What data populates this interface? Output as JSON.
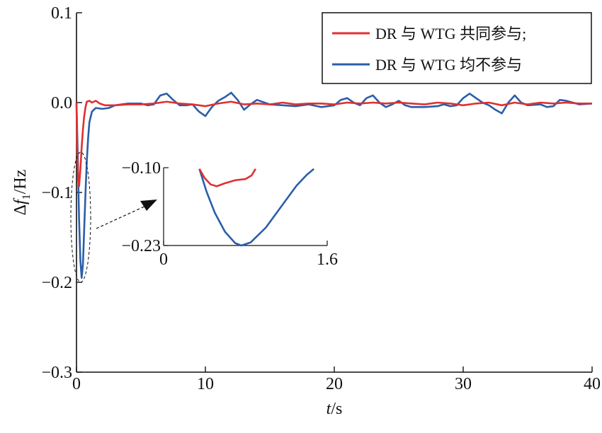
{
  "chart_data": {
    "type": "line",
    "xlabel": "t/s",
    "ylabel": "Δf1/Hz",
    "ylabel_main": "Δf",
    "ylabel_sub": "1",
    "ylabel_unit": "/Hz",
    "xlim": [
      0,
      40
    ],
    "ylim": [
      -0.3,
      0.1
    ],
    "x_ticks": [
      0,
      10,
      20,
      30,
      40
    ],
    "x_tick_labels": [
      "0",
      "10",
      "20",
      "30",
      "40"
    ],
    "y_ticks": [
      0.1,
      0.0,
      -0.1,
      -0.2,
      -0.3
    ],
    "y_tick_labels": [
      "0.1",
      "0.0",
      "−0.1",
      "−0.2",
      "−0.3"
    ],
    "grid": false,
    "legend_position": "top-right",
    "series": [
      {
        "name": "DR 与  WTG 共同参与;",
        "color": "#e03030",
        "points": [
          [
            0,
            0
          ],
          [
            0.06,
            -0.055
          ],
          [
            0.12,
            -0.085
          ],
          [
            0.2,
            -0.093
          ],
          [
            0.3,
            -0.075
          ],
          [
            0.4,
            -0.05
          ],
          [
            0.5,
            -0.03
          ],
          [
            0.6,
            -0.015
          ],
          [
            0.7,
            -0.005
          ],
          [
            0.8,
            0.001
          ],
          [
            1.0,
            0.002
          ],
          [
            1.2,
            0.0
          ],
          [
            1.5,
            0.002
          ],
          [
            1.8,
            -0.001
          ],
          [
            2.2,
            -0.003
          ],
          [
            3,
            -0.003
          ],
          [
            4,
            -0.002
          ],
          [
            5,
            -0.002
          ],
          [
            6,
            -0.001
          ],
          [
            7,
            0.001
          ],
          [
            8,
            -0.001
          ],
          [
            9,
            -0.002
          ],
          [
            10,
            -0.004
          ],
          [
            11,
            -0.001
          ],
          [
            12,
            0.001
          ],
          [
            13,
            -0.002
          ],
          [
            14,
            -0.001
          ],
          [
            15,
            -0.002
          ],
          [
            16,
            0.0
          ],
          [
            17,
            -0.002
          ],
          [
            18,
            -0.001
          ],
          [
            19,
            -0.001
          ],
          [
            20,
            -0.002
          ],
          [
            21,
            0.0
          ],
          [
            22,
            -0.001
          ],
          [
            23,
            0.0
          ],
          [
            24,
            -0.001
          ],
          [
            25,
            0.0
          ],
          [
            26,
            -0.001
          ],
          [
            27,
            -0.002
          ],
          [
            28,
            0.0
          ],
          [
            29,
            -0.001
          ],
          [
            30,
            -0.003
          ],
          [
            31,
            -0.001
          ],
          [
            32,
            0.0
          ],
          [
            33,
            -0.003
          ],
          [
            34,
            0.0
          ],
          [
            35,
            -0.002
          ],
          [
            36,
            0.0
          ],
          [
            37,
            -0.001
          ],
          [
            38,
            0.0
          ],
          [
            39,
            -0.001
          ],
          [
            40,
            -0.001
          ]
        ]
      },
      {
        "name": "DR 与  WTG 均不参与",
        "color": "#2a5ea8",
        "points": [
          [
            0,
            0
          ],
          [
            0.1,
            -0.06
          ],
          [
            0.2,
            -0.13
          ],
          [
            0.3,
            -0.175
          ],
          [
            0.4,
            -0.195
          ],
          [
            0.5,
            -0.18
          ],
          [
            0.6,
            -0.14
          ],
          [
            0.7,
            -0.1
          ],
          [
            0.8,
            -0.065
          ],
          [
            0.9,
            -0.04
          ],
          [
            1.0,
            -0.022
          ],
          [
            1.2,
            -0.01
          ],
          [
            1.5,
            -0.006
          ],
          [
            2.0,
            -0.007
          ],
          [
            2.5,
            -0.006
          ],
          [
            3.0,
            -0.003
          ],
          [
            3.5,
            -0.002
          ],
          [
            4,
            -0.001
          ],
          [
            5,
            -0.001
          ],
          [
            5.5,
            -0.003
          ],
          [
            6,
            -0.002
          ],
          [
            6.5,
            0.008
          ],
          [
            7,
            0.01
          ],
          [
            7.5,
            0.003
          ],
          [
            8,
            -0.003
          ],
          [
            8.5,
            -0.003
          ],
          [
            9,
            -0.002
          ],
          [
            9.5,
            -0.01
          ],
          [
            10,
            -0.015
          ],
          [
            10.5,
            -0.005
          ],
          [
            11,
            0.002
          ],
          [
            11.5,
            0.006
          ],
          [
            12,
            0.011
          ],
          [
            12.5,
            0.003
          ],
          [
            13,
            -0.008
          ],
          [
            13.5,
            -0.002
          ],
          [
            14,
            0.003
          ],
          [
            15,
            -0.002
          ],
          [
            16,
            -0.003
          ],
          [
            17,
            -0.004
          ],
          [
            18,
            -0.002
          ],
          [
            19,
            -0.005
          ],
          [
            20,
            -0.003
          ],
          [
            20.5,
            0.003
          ],
          [
            21,
            0.005
          ],
          [
            21.5,
            0.0
          ],
          [
            22,
            -0.003
          ],
          [
            22.5,
            0.005
          ],
          [
            23,
            0.008
          ],
          [
            23.5,
            0.0
          ],
          [
            24,
            -0.005
          ],
          [
            24.5,
            -0.002
          ],
          [
            25,
            0.002
          ],
          [
            25.5,
            -0.003
          ],
          [
            26,
            -0.005
          ],
          [
            27,
            -0.005
          ],
          [
            28,
            -0.004
          ],
          [
            28.5,
            -0.002
          ],
          [
            29,
            -0.004
          ],
          [
            29.5,
            -0.003
          ],
          [
            30,
            0.005
          ],
          [
            30.5,
            0.01
          ],
          [
            31,
            0.005
          ],
          [
            31.5,
            0.0
          ],
          [
            32,
            -0.003
          ],
          [
            32.5,
            -0.008
          ],
          [
            33,
            -0.012
          ],
          [
            33.5,
            0.0
          ],
          [
            34,
            0.008
          ],
          [
            34.5,
            0.0
          ],
          [
            35,
            -0.003
          ],
          [
            36,
            -0.002
          ],
          [
            36.5,
            -0.005
          ],
          [
            37,
            -0.004
          ],
          [
            37.5,
            0.003
          ],
          [
            38,
            0.002
          ],
          [
            39,
            -0.002
          ],
          [
            40,
            -0.001
          ]
        ]
      }
    ],
    "inset": {
      "xlim": [
        0,
        1.6
      ],
      "ylim": [
        -0.23,
        -0.1
      ],
      "x_tick_labels": [
        "0",
        "1.6"
      ],
      "y_tick_labels": [
        "−0.10",
        "−0.23"
      ],
      "series": [
        {
          "color": "#e03030",
          "points": [
            [
              0.35,
              -0.102
            ],
            [
              0.4,
              -0.117
            ],
            [
              0.46,
              -0.128
            ],
            [
              0.52,
              -0.131
            ],
            [
              0.6,
              -0.126
            ],
            [
              0.7,
              -0.121
            ],
            [
              0.8,
              -0.119
            ],
            [
              0.86,
              -0.113
            ],
            [
              0.9,
              -0.102
            ]
          ]
        },
        {
          "color": "#2a5ea8",
          "points": [
            [
              0.35,
              -0.102
            ],
            [
              0.42,
              -0.14
            ],
            [
              0.5,
              -0.175
            ],
            [
              0.6,
              -0.207
            ],
            [
              0.7,
              -0.226
            ],
            [
              0.76,
              -0.23
            ],
            [
              0.85,
              -0.225
            ],
            [
              1.0,
              -0.2
            ],
            [
              1.15,
              -0.165
            ],
            [
              1.3,
              -0.13
            ],
            [
              1.4,
              -0.112
            ],
            [
              1.47,
              -0.102
            ]
          ]
        }
      ]
    }
  }
}
